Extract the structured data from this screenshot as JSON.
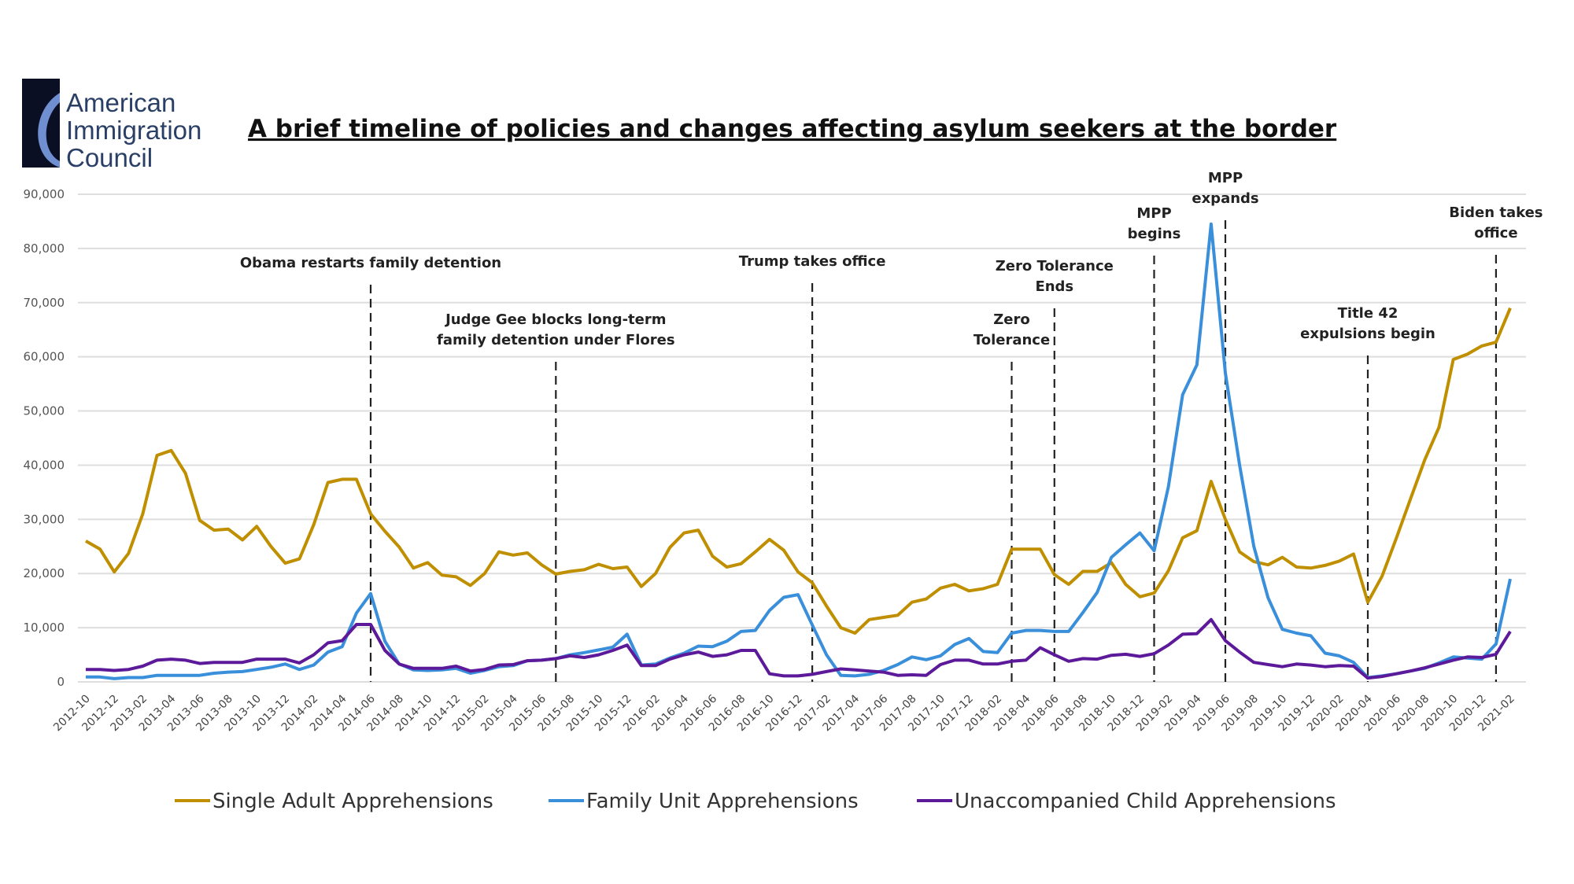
{
  "logo": {
    "lines": [
      "American",
      "Immigration",
      "Council"
    ]
  },
  "chart_data": {
    "type": "line",
    "title": "A brief timeline of policies and changes affecting asylum seekers at the border",
    "xlabel": "",
    "ylabel": "",
    "ylim": [
      0,
      90000
    ],
    "yticks": [
      0,
      10000,
      20000,
      30000,
      40000,
      50000,
      60000,
      70000,
      80000,
      90000
    ],
    "ytick_labels": [
      "0",
      "10,000",
      "20,000",
      "30,000",
      "40,000",
      "50,000",
      "60,000",
      "70,000",
      "80,000",
      "90,000"
    ],
    "x_start": "2012-10",
    "x_end": "2021-02",
    "x_tick_every_months": 2,
    "grid": true,
    "legend_position": "bottom",
    "series": [
      {
        "name": "Single Adult Apprehensions",
        "color": "#BF8F00",
        "values": [
          26000,
          24500,
          20300,
          23700,
          31000,
          41800,
          42700,
          38500,
          29800,
          28000,
          28200,
          26200,
          28700,
          25000,
          21900,
          22700,
          29000,
          36800,
          37400,
          37400,
          31000,
          27800,
          24900,
          21000,
          22000,
          19700,
          19400,
          17800,
          20000,
          24000,
          23400,
          23800,
          21600,
          19900,
          20400,
          20700,
          21700,
          20900,
          21200,
          17600,
          20000,
          24800,
          27500,
          28000,
          23200,
          21200,
          21800,
          24000,
          26300,
          24300,
          20300,
          18300,
          14000,
          10000,
          9000,
          11500,
          11900,
          12300,
          14700,
          15300,
          17300,
          18000,
          16800,
          17200,
          18000,
          24500,
          24500,
          24500,
          19800,
          18000,
          20400,
          20400,
          22000,
          18000,
          15700,
          16400,
          20500,
          26600,
          27900,
          37000,
          30000,
          24000,
          22200,
          21600,
          23000,
          21200,
          21000,
          21500,
          22300,
          23600,
          14700,
          19500,
          26500,
          33800,
          41000,
          47000,
          59500,
          60500,
          62000,
          62700,
          69000
        ]
      },
      {
        "name": "Family Unit Apprehensions",
        "color": "#3A8FDB",
        "values": [
          900,
          900,
          600,
          800,
          800,
          1200,
          1200,
          1200,
          1200,
          1600,
          1800,
          1900,
          2300,
          2700,
          3300,
          2300,
          3100,
          5500,
          6500,
          12700,
          16300,
          7500,
          3300,
          2200,
          2100,
          2200,
          2500,
          1600,
          2100,
          2800,
          3000,
          3900,
          4000,
          4300,
          5000,
          5400,
          5900,
          6400,
          8800,
          3100,
          3300,
          4400,
          5300,
          6600,
          6500,
          7500,
          9300,
          9500,
          13200,
          15600,
          16100,
          10500,
          5000,
          1200,
          1100,
          1400,
          2100,
          3200,
          4600,
          4100,
          4800,
          6900,
          8000,
          5600,
          5400,
          9000,
          9500,
          9500,
          9300,
          9300,
          12800,
          16500,
          23000,
          25300,
          27500,
          24200,
          36000,
          53000,
          58500,
          84500,
          57000,
          40000,
          25000,
          15500,
          9700,
          9000,
          8500,
          5300,
          4800,
          3600,
          800,
          1100,
          1500,
          2000,
          2500,
          3500,
          4600,
          4400,
          4200,
          7000,
          19000
        ]
      },
      {
        "name": "Unaccompanied Child Apprehensions",
        "color": "#5C1A9A",
        "values": [
          2300,
          2300,
          2100,
          2300,
          2900,
          4000,
          4200,
          4000,
          3400,
          3600,
          3600,
          3600,
          4200,
          4200,
          4200,
          3500,
          5000,
          7200,
          7600,
          10600,
          10600,
          5800,
          3300,
          2500,
          2500,
          2500,
          2900,
          2000,
          2300,
          3100,
          3200,
          3900,
          4000,
          4300,
          4800,
          4500,
          5000,
          5800,
          6800,
          3000,
          3000,
          4200,
          5000,
          5500,
          4700,
          5000,
          5800,
          5800,
          1500,
          1100,
          1100,
          1400,
          1900,
          2400,
          2200,
          2000,
          1800,
          1200,
          1300,
          1200,
          3200,
          4000,
          4000,
          3300,
          3300,
          3800,
          4000,
          6300,
          5000,
          3800,
          4300,
          4200,
          4900,
          5100,
          4700,
          5200,
          6800,
          8800,
          8900,
          11500,
          7600,
          5500,
          3600,
          3200,
          2800,
          3300,
          3100,
          2800,
          3000,
          2900,
          700,
          1000,
          1500,
          2000,
          2600,
          3300,
          4000,
          4600,
          4500,
          5100,
          9300
        ]
      }
    ],
    "annotations": [
      {
        "date": "2014-06",
        "lines": [
          "Obama restarts family detention"
        ]
      },
      {
        "date": "2015-07",
        "lines": [
          "Judge Gee blocks long-term",
          "family detention under Flores"
        ]
      },
      {
        "date": "2017-01",
        "lines": [
          "Trump takes office"
        ]
      },
      {
        "date": "2018-03",
        "lines": [
          "Zero",
          "Tolerance"
        ]
      },
      {
        "date": "2018-06",
        "lines": [
          "Zero Tolerance",
          "Ends"
        ]
      },
      {
        "date": "2019-01",
        "lines": [
          "MPP",
          "begins"
        ]
      },
      {
        "date": "2019-06",
        "lines": [
          "MPP",
          "expands"
        ]
      },
      {
        "date": "2020-04",
        "lines": [
          "Title 42",
          "expulsions begin"
        ]
      },
      {
        "date": "2021-01",
        "lines": [
          "Biden takes",
          "office"
        ]
      }
    ]
  }
}
